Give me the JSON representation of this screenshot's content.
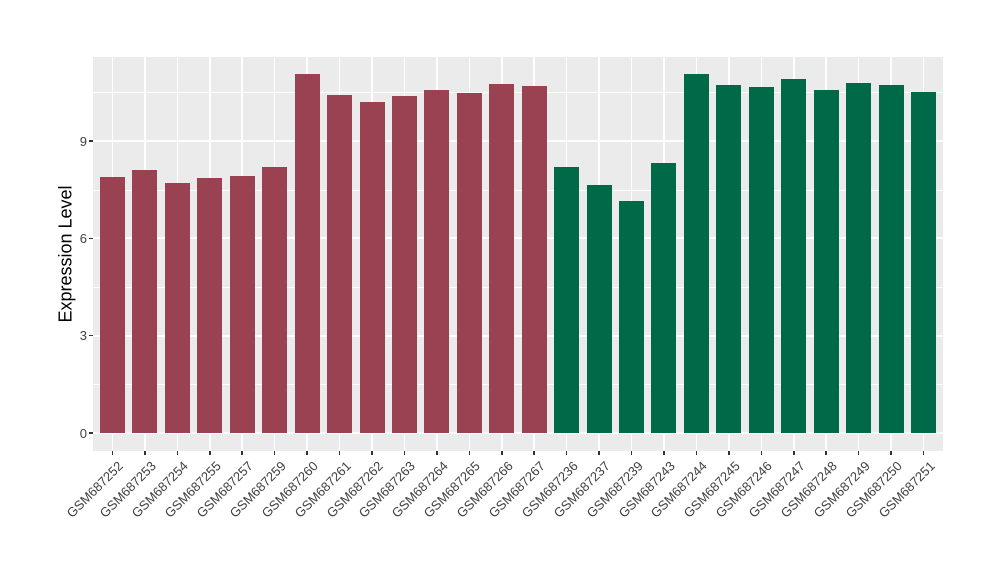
{
  "figure": {
    "background": "#FFFFFF",
    "panel_background": "#EBEBEB",
    "grid_color": "#FFFFFF",
    "tick_color": "#333333",
    "axis_text_color": "#404040",
    "axis_title_color": "#000000"
  },
  "chart_data": {
    "type": "bar",
    "title": "",
    "xlabel": "",
    "ylabel": "Expression Level",
    "ylim": [
      -0.56,
      11.59
    ],
    "yticks": [
      0,
      3,
      6,
      9
    ],
    "yminor": [
      1.5,
      4.5,
      7.5,
      10.5
    ],
    "grid": "on",
    "legend": "none",
    "group_colors": {
      "1": "#9B4252",
      "2": "#006948"
    },
    "bars": [
      {
        "label": "GSM687252",
        "value": 7.89,
        "group": "1"
      },
      {
        "label": "GSM687253",
        "value": 8.12,
        "group": "1"
      },
      {
        "label": "GSM687254",
        "value": 7.7,
        "group": "1"
      },
      {
        "label": "GSM687255",
        "value": 7.85,
        "group": "1"
      },
      {
        "label": "GSM687257",
        "value": 7.92,
        "group": "1"
      },
      {
        "label": "GSM687259",
        "value": 8.2,
        "group": "1"
      },
      {
        "label": "GSM687260",
        "value": 11.07,
        "group": "1"
      },
      {
        "label": "GSM687261",
        "value": 10.42,
        "group": "1"
      },
      {
        "label": "GSM687262",
        "value": 10.21,
        "group": "1"
      },
      {
        "label": "GSM687263",
        "value": 10.4,
        "group": "1"
      },
      {
        "label": "GSM687264",
        "value": 10.58,
        "group": "1"
      },
      {
        "label": "GSM687265",
        "value": 10.49,
        "group": "1"
      },
      {
        "label": "GSM687266",
        "value": 10.76,
        "group": "1"
      },
      {
        "label": "GSM687267",
        "value": 10.7,
        "group": "1"
      },
      {
        "label": "GSM687236",
        "value": 8.2,
        "group": "2"
      },
      {
        "label": "GSM687237",
        "value": 7.64,
        "group": "2"
      },
      {
        "label": "GSM687239",
        "value": 7.15,
        "group": "2"
      },
      {
        "label": "GSM687243",
        "value": 8.32,
        "group": "2"
      },
      {
        "label": "GSM687244",
        "value": 11.06,
        "group": "2"
      },
      {
        "label": "GSM687245",
        "value": 10.73,
        "group": "2"
      },
      {
        "label": "GSM687246",
        "value": 10.67,
        "group": "2"
      },
      {
        "label": "GSM687247",
        "value": 10.92,
        "group": "2"
      },
      {
        "label": "GSM687248",
        "value": 10.58,
        "group": "2"
      },
      {
        "label": "GSM687249",
        "value": 10.79,
        "group": "2"
      },
      {
        "label": "GSM687250",
        "value": 10.73,
        "group": "2"
      },
      {
        "label": "GSM687251",
        "value": 10.52,
        "group": "2"
      }
    ]
  }
}
